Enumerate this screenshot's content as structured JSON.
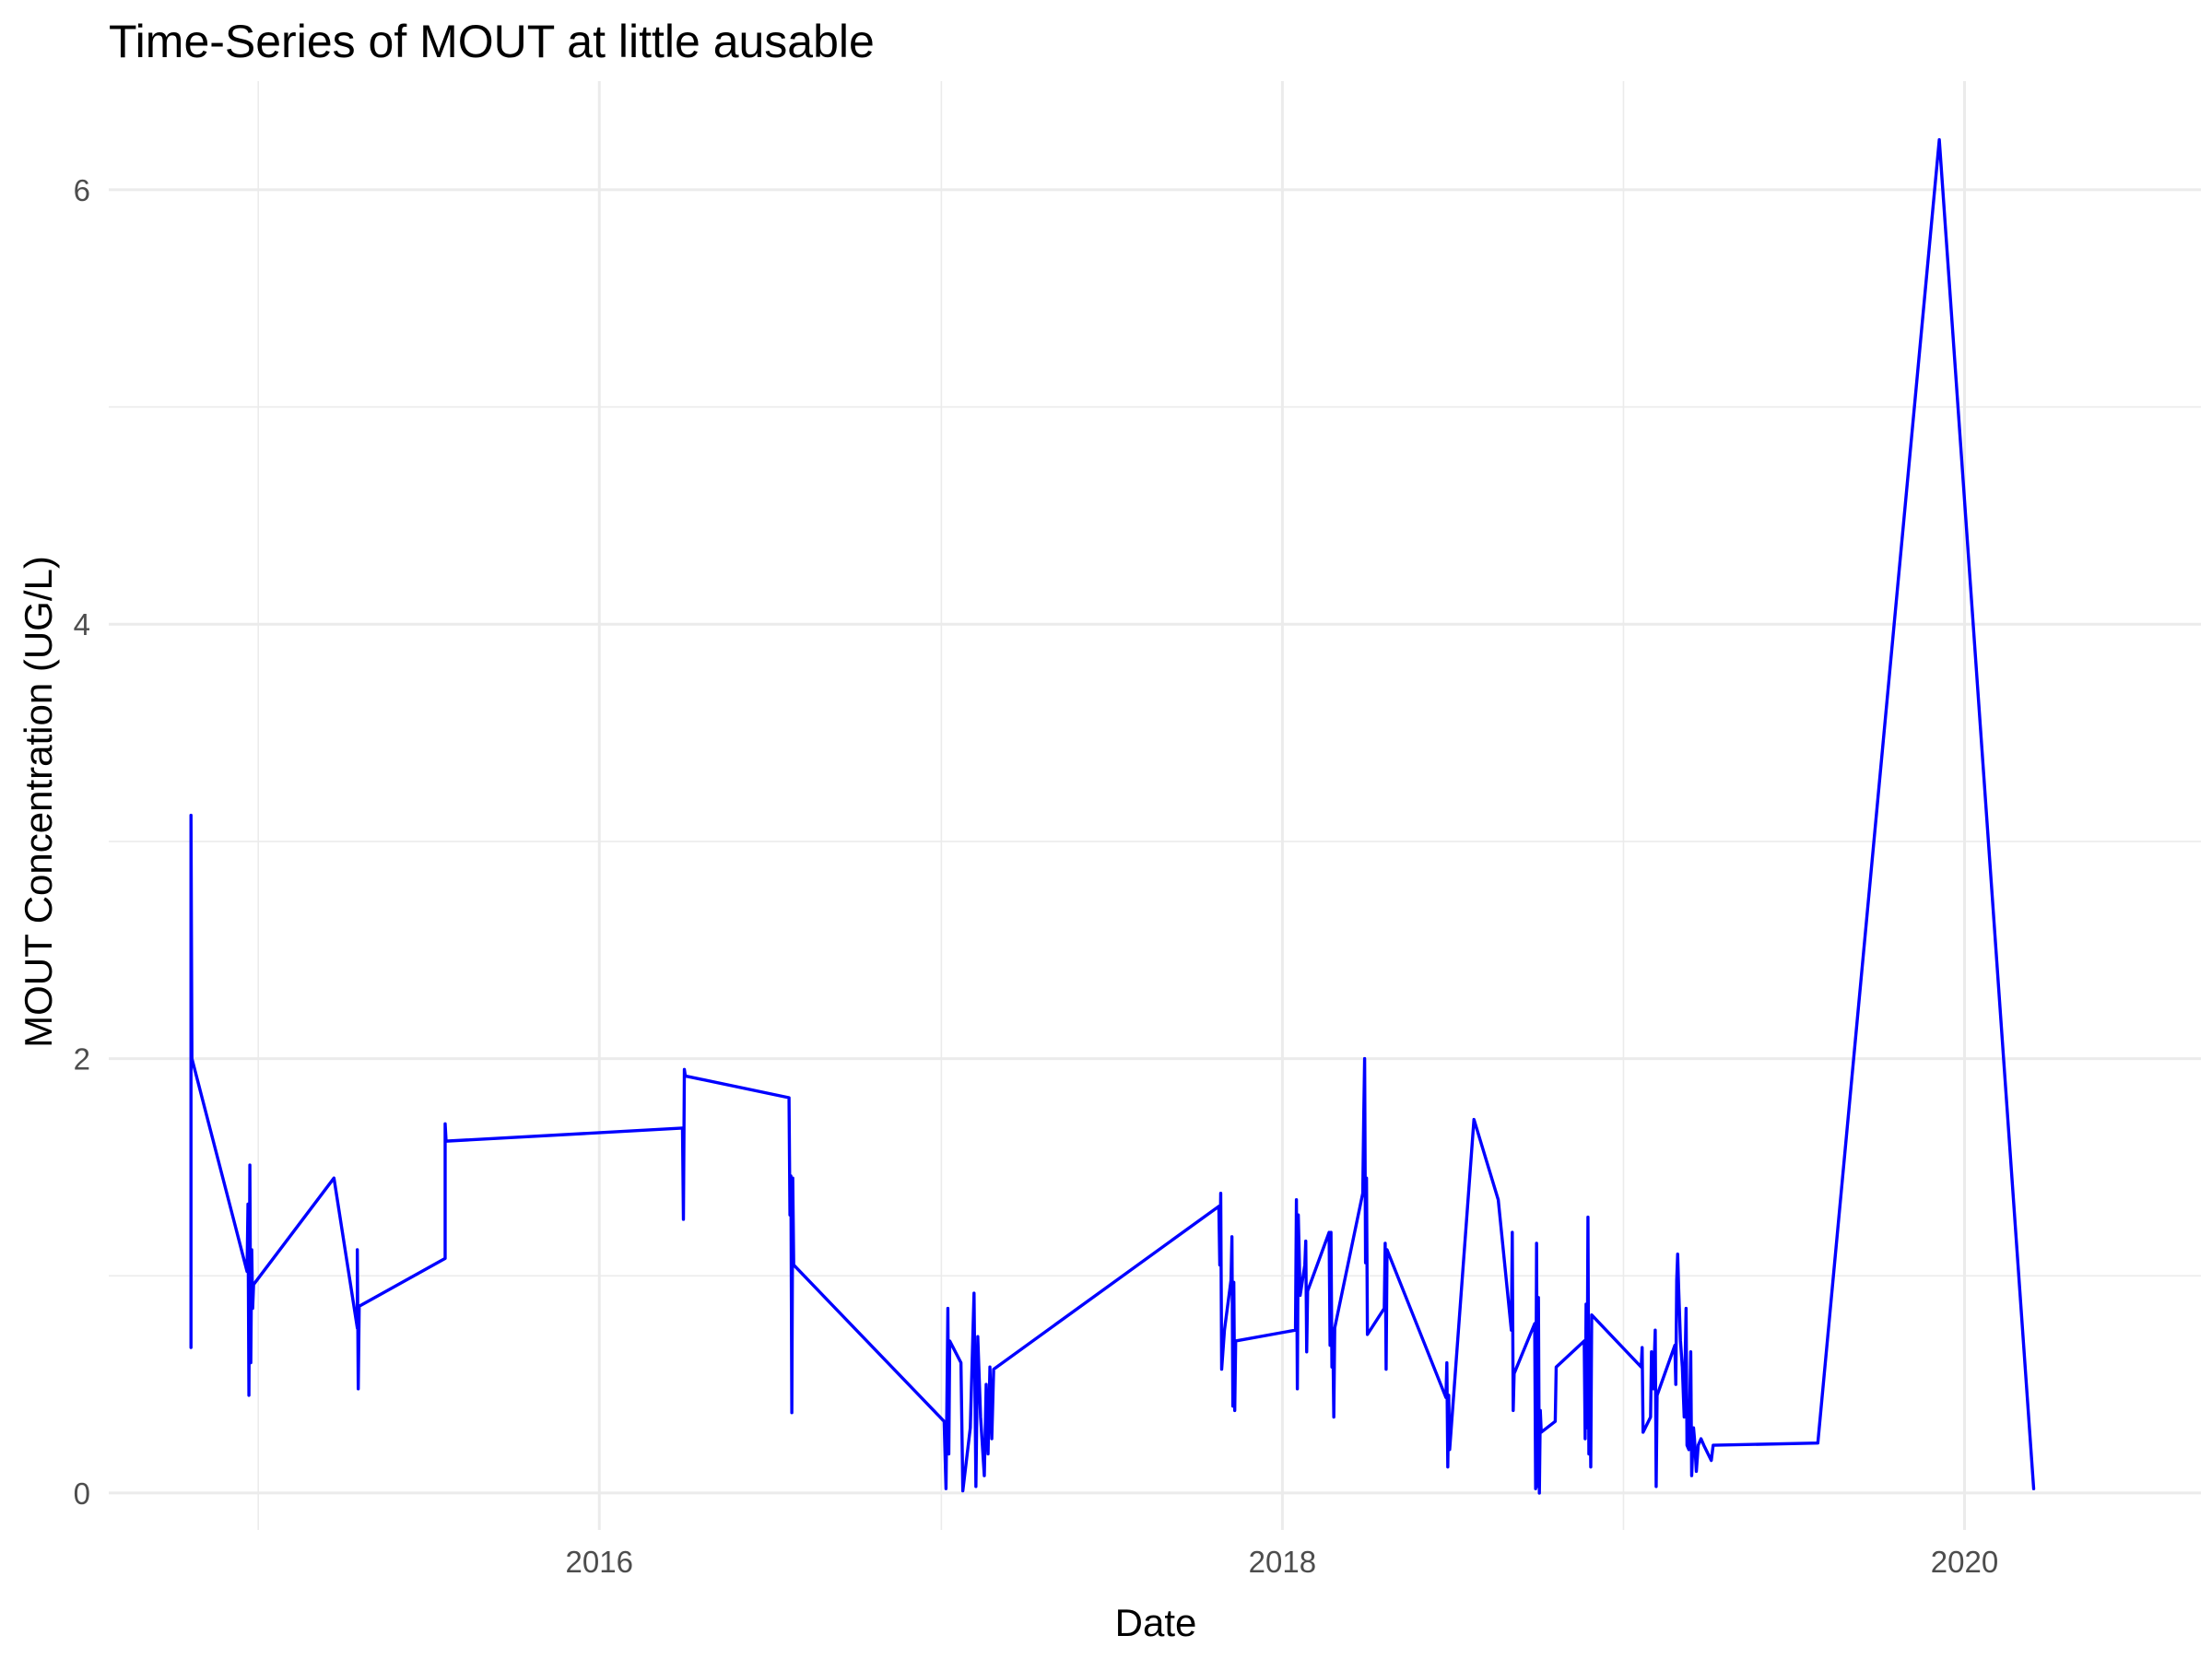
{
  "chart_data": {
    "type": "line",
    "title": "Time-Series of MOUT at little ausable",
    "xlabel": "Date",
    "ylabel": "MOUT Concentration (UG/L)",
    "x_is_date": true,
    "xlim": [
      "2014-07-25",
      "2020-09-10"
    ],
    "ylim": [
      -0.17,
      6.5
    ],
    "x_ticks": [
      {
        "value": "2016-01-01",
        "label": "2016"
      },
      {
        "value": "2018-01-01",
        "label": "2018"
      },
      {
        "value": "2020-01-01",
        "label": "2020"
      }
    ],
    "x_minor_ticks": [
      "2015-01-01",
      "2017-01-01",
      "2019-01-01"
    ],
    "y_ticks": [
      0,
      2,
      4,
      6
    ],
    "y_tick_labels": [
      "0",
      "2",
      "4",
      "6"
    ],
    "y_minor_ticks": [
      1,
      3,
      5
    ],
    "grid": true,
    "legend": "none",
    "series": [
      {
        "color": "#0000ff",
        "points": [
          [
            "2014-10-21",
            0.67
          ],
          [
            "2014-10-21",
            3.12
          ],
          [
            "2014-10-22",
            2.0
          ],
          [
            "2014-12-20",
            1.02
          ],
          [
            "2014-12-21",
            1.33
          ],
          [
            "2014-12-22",
            0.45
          ],
          [
            "2014-12-23",
            1.51
          ],
          [
            "2014-12-24",
            0.6
          ],
          [
            "2014-12-25",
            1.12
          ],
          [
            "2014-12-26",
            0.85
          ],
          [
            "2014-12-27",
            0.96
          ],
          [
            "2015-03-23",
            1.45
          ],
          [
            "2015-04-17",
            0.76
          ],
          [
            "2015-04-17",
            1.12
          ],
          [
            "2015-04-18",
            0.48
          ],
          [
            "2015-04-19",
            0.86
          ],
          [
            "2015-07-20",
            1.08
          ],
          [
            "2015-07-20",
            1.7
          ],
          [
            "2015-07-21",
            1.62
          ],
          [
            "2016-03-30",
            1.68
          ],
          [
            "2016-03-31",
            1.26
          ],
          [
            "2016-04-01",
            1.95
          ],
          [
            "2016-04-02",
            1.92
          ],
          [
            "2016-07-22",
            1.82
          ],
          [
            "2016-07-23",
            1.28
          ],
          [
            "2016-07-24",
            1.46
          ],
          [
            "2016-07-25",
            0.37
          ],
          [
            "2016-07-26",
            1.45
          ],
          [
            "2016-07-27",
            1.05
          ],
          [
            "2017-01-04",
            0.33
          ],
          [
            "2017-01-06",
            0.02
          ],
          [
            "2017-01-08",
            0.85
          ],
          [
            "2017-01-09",
            0.18
          ],
          [
            "2017-01-10",
            0.7
          ],
          [
            "2017-01-22",
            0.6
          ],
          [
            "2017-01-24",
            0.01
          ],
          [
            "2017-02-01",
            0.3
          ],
          [
            "2017-02-05",
            0.92
          ],
          [
            "2017-02-07",
            0.03
          ],
          [
            "2017-02-09",
            0.72
          ],
          [
            "2017-02-12",
            0.35
          ],
          [
            "2017-02-16",
            0.08
          ],
          [
            "2017-02-18",
            0.5
          ],
          [
            "2017-02-20",
            0.18
          ],
          [
            "2017-02-22",
            0.58
          ],
          [
            "2017-02-24",
            0.25
          ],
          [
            "2017-02-26",
            0.57
          ],
          [
            "2017-10-25",
            1.32
          ],
          [
            "2017-10-26",
            1.05
          ],
          [
            "2017-10-27",
            1.38
          ],
          [
            "2017-10-28",
            0.57
          ],
          [
            "2017-10-31",
            0.75
          ],
          [
            "2017-11-07",
            0.98
          ],
          [
            "2017-11-08",
            1.18
          ],
          [
            "2017-11-09",
            0.4
          ],
          [
            "2017-11-10",
            0.97
          ],
          [
            "2017-11-11",
            0.38
          ],
          [
            "2017-11-12",
            0.7
          ],
          [
            "2018-01-15",
            0.75
          ],
          [
            "2018-01-16",
            1.35
          ],
          [
            "2018-01-17",
            0.48
          ],
          [
            "2018-01-18",
            1.28
          ],
          [
            "2018-01-20",
            0.91
          ],
          [
            "2018-01-25",
            1.05
          ],
          [
            "2018-01-26",
            1.16
          ],
          [
            "2018-01-27",
            0.65
          ],
          [
            "2018-01-28",
            0.93
          ],
          [
            "2018-02-20",
            1.2
          ],
          [
            "2018-02-21",
            0.68
          ],
          [
            "2018-02-22",
            1.2
          ],
          [
            "2018-02-23",
            0.58
          ],
          [
            "2018-02-24",
            0.72
          ],
          [
            "2018-02-25",
            0.35
          ],
          [
            "2018-02-26",
            0.76
          ],
          [
            "2018-03-28",
            1.38
          ],
          [
            "2018-03-29",
            1.72
          ],
          [
            "2018-03-30",
            2.0
          ],
          [
            "2018-03-31",
            1.06
          ],
          [
            "2018-04-01",
            1.45
          ],
          [
            "2018-04-02",
            0.73
          ],
          [
            "2018-04-20",
            0.85
          ],
          [
            "2018-04-21",
            1.15
          ],
          [
            "2018-04-22",
            0.57
          ],
          [
            "2018-04-23",
            1.12
          ],
          [
            "2018-06-25",
            0.44
          ],
          [
            "2018-06-26",
            0.6
          ],
          [
            "2018-06-27",
            0.12
          ],
          [
            "2018-06-28",
            0.45
          ],
          [
            "2018-06-29",
            0.2
          ],
          [
            "2018-07-25",
            1.72
          ],
          [
            "2018-08-20",
            1.35
          ],
          [
            "2018-09-03",
            0.75
          ],
          [
            "2018-09-04",
            1.2
          ],
          [
            "2018-09-05",
            0.38
          ],
          [
            "2018-09-06",
            0.55
          ],
          [
            "2018-09-28",
            0.78
          ],
          [
            "2018-09-29",
            0.02
          ],
          [
            "2018-09-30",
            1.15
          ],
          [
            "2018-10-01",
            0.03
          ],
          [
            "2018-10-02",
            0.9
          ],
          [
            "2018-10-03",
            0.0
          ],
          [
            "2018-10-04",
            0.38
          ],
          [
            "2018-10-05",
            0.28
          ],
          [
            "2018-10-20",
            0.33
          ],
          [
            "2018-10-21",
            0.58
          ],
          [
            "2018-11-20",
            0.7
          ],
          [
            "2018-11-21",
            0.25
          ],
          [
            "2018-11-22",
            0.87
          ],
          [
            "2018-11-23",
            0.3
          ],
          [
            "2018-11-24",
            1.27
          ],
          [
            "2018-11-25",
            0.18
          ],
          [
            "2018-11-26",
            0.6
          ],
          [
            "2018-11-27",
            0.12
          ],
          [
            "2018-11-28",
            0.82
          ],
          [
            "2019-01-20",
            0.58
          ],
          [
            "2019-01-21",
            0.67
          ],
          [
            "2019-01-22",
            0.28
          ],
          [
            "2019-01-30",
            0.35
          ],
          [
            "2019-01-31",
            0.65
          ],
          [
            "2019-02-02",
            0.48
          ],
          [
            "2019-02-04",
            0.75
          ],
          [
            "2019-02-05",
            0.03
          ],
          [
            "2019-02-06",
            0.45
          ],
          [
            "2019-02-25",
            0.68
          ],
          [
            "2019-02-26",
            0.5
          ],
          [
            "2019-02-27",
            0.98
          ],
          [
            "2019-02-28",
            1.1
          ],
          [
            "2019-03-01",
            0.95
          ],
          [
            "2019-03-03",
            0.7
          ],
          [
            "2019-03-05",
            0.58
          ],
          [
            "2019-03-07",
            0.35
          ],
          [
            "2019-03-09",
            0.85
          ],
          [
            "2019-03-10",
            0.22
          ],
          [
            "2019-03-12",
            0.2
          ],
          [
            "2019-03-14",
            0.65
          ],
          [
            "2019-03-15",
            0.08
          ],
          [
            "2019-03-17",
            0.3
          ],
          [
            "2019-03-18",
            0.25
          ],
          [
            "2019-03-20",
            0.1
          ],
          [
            "2019-03-22",
            0.22
          ],
          [
            "2019-03-25",
            0.25
          ],
          [
            "2019-03-28",
            0.22
          ],
          [
            "2019-04-05",
            0.15
          ],
          [
            "2019-04-07",
            0.22
          ],
          [
            "2019-07-28",
            0.23
          ],
          [
            "2019-12-05",
            6.23
          ],
          [
            "2020-03-15",
            0.02
          ]
        ]
      }
    ]
  }
}
